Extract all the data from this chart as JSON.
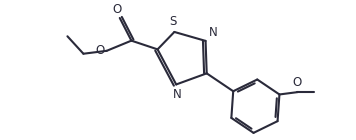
{
  "bg_color": "#ffffff",
  "line_color": "#2a2a3a",
  "line_width": 1.5,
  "font_size": 8.5,
  "figsize": [
    3.56,
    1.4
  ],
  "dpi": 100,
  "xlim": [
    -0.5,
    9.5
  ],
  "ylim": [
    -0.3,
    4.3
  ]
}
